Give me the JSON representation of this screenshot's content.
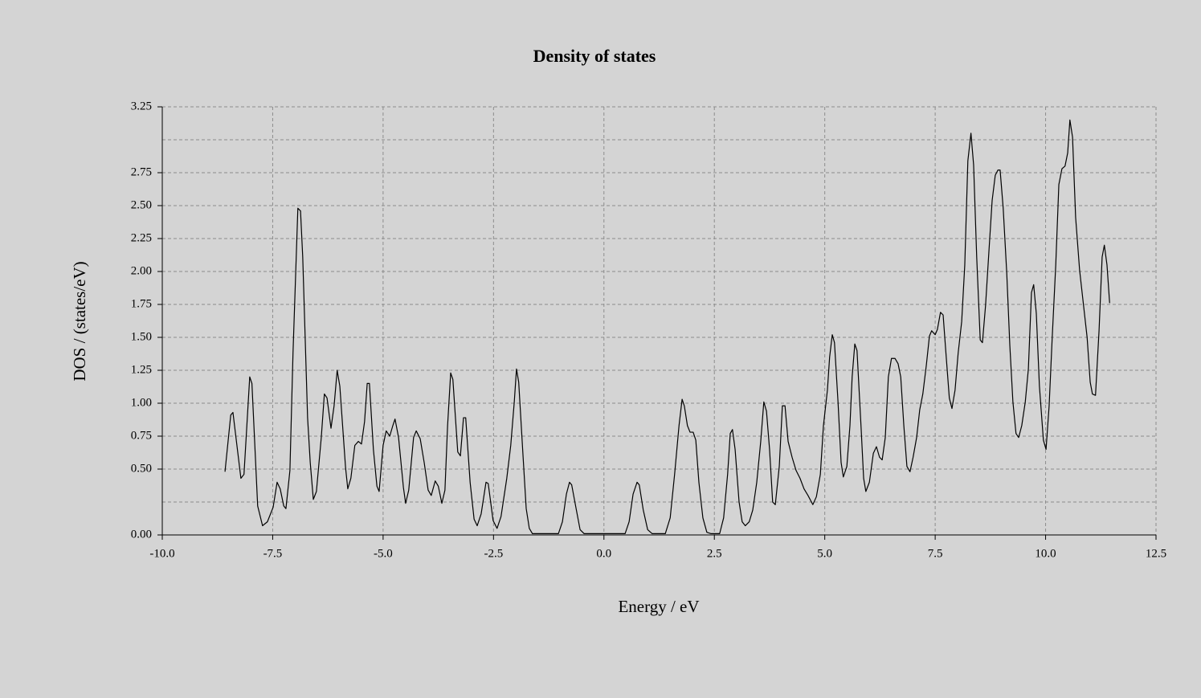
{
  "chart_data": {
    "type": "line",
    "title": "Density of states",
    "xlabel": "Energy / eV",
    "ylabel": "DOS / (states/eV)",
    "color": "#000000",
    "background": "#d4d4d4",
    "grid": true,
    "xlim": [
      -10,
      12.5
    ],
    "ylim": [
      0,
      3.25
    ],
    "xticks": [
      {
        "value": -10,
        "label": "-10.0"
      },
      -7.5,
      {
        "value": -5,
        "label": "-5.0"
      },
      -2.5,
      {
        "value": 0,
        "label": "0.0"
      },
      2.5,
      {
        "value": 5,
        "label": "5.0"
      },
      7.5,
      {
        "value": 10,
        "label": "10.0"
      },
      12.5
    ],
    "yticks": [
      {
        "value": 0,
        "label": "0.00"
      },
      {
        "value": 0.5,
        "label": "0.50"
      },
      {
        "value": 0.75,
        "label": "0.75"
      },
      {
        "value": 1,
        "label": "1.00"
      },
      {
        "value": 1.25,
        "label": "1.25"
      },
      {
        "value": 1.5,
        "label": "1.50"
      },
      {
        "value": 1.75,
        "label": "1.75"
      },
      {
        "value": 2,
        "label": "2.00"
      },
      {
        "value": 2.25,
        "label": "2.25"
      },
      {
        "value": 2.5,
        "label": "2.50"
      },
      {
        "value": 2.75,
        "label": "2.75"
      },
      {
        "value": 3.25,
        "label": "3.25"
      }
    ],
    "ygrid": [
      0.25,
      0.5,
      0.75,
      1,
      1.25,
      1.5,
      1.75,
      2,
      2.25,
      2.5,
      2.75,
      3,
      3.25
    ],
    "x": [
      -8.58,
      -8.45,
      -8.4,
      -8.22,
      -8.15,
      -8.02,
      -7.97,
      -7.84,
      -7.73,
      -7.62,
      -7.49,
      -7.4,
      -7.33,
      -7.25,
      -7.2,
      -7.11,
      -7.04,
      -6.93,
      -6.87,
      -6.82,
      -6.71,
      -6.65,
      -6.58,
      -6.51,
      -6.4,
      -6.33,
      -6.27,
      -6.18,
      -6.11,
      -6.04,
      -5.98,
      -5.85,
      -5.8,
      -5.73,
      -5.64,
      -5.56,
      -5.49,
      -5.42,
      -5.36,
      -5.31,
      -5.22,
      -5.14,
      -5.09,
      -5.0,
      -4.93,
      -4.85,
      -4.78,
      -4.73,
      -4.65,
      -4.54,
      -4.49,
      -4.42,
      -4.31,
      -4.25,
      -4.16,
      -4.07,
      -3.98,
      -3.91,
      -3.82,
      -3.75,
      -3.67,
      -3.6,
      -3.54,
      -3.47,
      -3.42,
      -3.31,
      -3.25,
      -3.18,
      -3.13,
      -3.03,
      -2.94,
      -2.87,
      -2.78,
      -2.67,
      -2.62,
      -2.51,
      -2.42,
      -2.33,
      -2.2,
      -2.11,
      -2.03,
      -1.98,
      -1.93,
      -1.83,
      -1.76,
      -1.69,
      -1.62,
      -1.03,
      -0.94,
      -0.85,
      -0.78,
      -0.73,
      -0.63,
      -0.54,
      -0.45,
      0.48,
      0.57,
      0.66,
      0.75,
      0.8,
      0.89,
      0.99,
      1.09,
      1.39,
      1.5,
      1.6,
      1.7,
      1.77,
      1.82,
      1.89,
      1.95,
      2.02,
      2.08,
      2.15,
      2.24,
      2.33,
      2.42,
      2.62,
      2.71,
      2.8,
      2.86,
      2.91,
      2.97,
      3.06,
      3.13,
      3.2,
      3.29,
      3.37,
      3.46,
      3.55,
      3.62,
      3.68,
      3.75,
      3.82,
      3.88,
      3.97,
      4.04,
      4.1,
      4.17,
      4.26,
      4.35,
      4.44,
      4.53,
      4.62,
      4.73,
      4.81,
      4.9,
      4.97,
      5.06,
      5.11,
      5.17,
      5.22,
      5.3,
      5.37,
      5.42,
      5.5,
      5.57,
      5.62,
      5.68,
      5.73,
      5.82,
      5.88,
      5.93,
      6.01,
      6.1,
      6.17,
      6.24,
      6.3,
      6.37,
      6.44,
      6.51,
      6.59,
      6.66,
      6.72,
      6.79,
      6.86,
      6.93,
      7.0,
      7.08,
      7.15,
      7.22,
      7.3,
      7.37,
      7.42,
      7.5,
      7.55,
      7.62,
      7.68,
      7.73,
      7.82,
      7.88,
      7.95,
      8.02,
      8.1,
      8.17,
      8.24,
      8.31,
      8.37,
      8.44,
      8.52,
      8.57,
      8.64,
      8.72,
      8.79,
      8.86,
      8.92,
      8.97,
      9.04,
      9.12,
      9.19,
      9.26,
      9.33,
      9.39,
      9.46,
      9.54,
      9.61,
      9.68,
      9.73,
      9.79,
      9.86,
      9.95,
      10.01,
      10.08,
      10.15,
      10.23,
      10.3,
      10.37,
      10.44,
      10.5,
      10.55,
      10.61,
      10.68,
      10.77,
      10.86,
      10.94,
      11.01,
      11.06,
      11.13,
      11.21,
      11.28,
      11.33,
      11.39,
      11.45
    ],
    "values": [
      0.48,
      0.91,
      0.93,
      0.43,
      0.46,
      1.2,
      1.15,
      0.22,
      0.07,
      0.1,
      0.21,
      0.4,
      0.35,
      0.22,
      0.2,
      0.49,
      1.38,
      2.48,
      2.46,
      2.11,
      0.89,
      0.55,
      0.27,
      0.33,
      0.74,
      1.07,
      1.04,
      0.81,
      0.98,
      1.25,
      1.13,
      0.51,
      0.35,
      0.43,
      0.68,
      0.71,
      0.69,
      0.86,
      1.15,
      1.15,
      0.65,
      0.37,
      0.33,
      0.68,
      0.79,
      0.75,
      0.83,
      0.88,
      0.74,
      0.36,
      0.24,
      0.34,
      0.74,
      0.79,
      0.73,
      0.55,
      0.34,
      0.3,
      0.41,
      0.37,
      0.24,
      0.34,
      0.83,
      1.23,
      1.18,
      0.63,
      0.6,
      0.89,
      0.89,
      0.4,
      0.12,
      0.07,
      0.16,
      0.4,
      0.39,
      0.11,
      0.05,
      0.14,
      0.43,
      0.68,
      1.01,
      1.26,
      1.16,
      0.59,
      0.2,
      0.05,
      0.01,
      0.01,
      0.1,
      0.31,
      0.4,
      0.38,
      0.2,
      0.04,
      0.01,
      0.01,
      0.1,
      0.31,
      0.4,
      0.38,
      0.19,
      0.04,
      0.01,
      0.01,
      0.13,
      0.46,
      0.83,
      1.03,
      0.98,
      0.83,
      0.78,
      0.78,
      0.72,
      0.4,
      0.13,
      0.02,
      0.01,
      0.01,
      0.13,
      0.46,
      0.77,
      0.8,
      0.65,
      0.25,
      0.1,
      0.07,
      0.1,
      0.19,
      0.4,
      0.71,
      1.01,
      0.94,
      0.65,
      0.25,
      0.23,
      0.52,
      0.98,
      0.98,
      0.71,
      0.59,
      0.49,
      0.43,
      0.35,
      0.3,
      0.23,
      0.29,
      0.46,
      0.83,
      1.1,
      1.35,
      1.52,
      1.46,
      1.01,
      0.55,
      0.44,
      0.52,
      0.83,
      1.2,
      1.45,
      1.4,
      0.83,
      0.43,
      0.33,
      0.4,
      0.62,
      0.67,
      0.59,
      0.57,
      0.74,
      1.2,
      1.34,
      1.34,
      1.3,
      1.2,
      0.83,
      0.52,
      0.48,
      0.59,
      0.74,
      0.95,
      1.07,
      1.29,
      1.51,
      1.55,
      1.52,
      1.56,
      1.69,
      1.67,
      1.44,
      1.04,
      0.96,
      1.1,
      1.38,
      1.62,
      2.05,
      2.84,
      3.05,
      2.81,
      2.11,
      1.48,
      1.46,
      1.74,
      2.17,
      2.54,
      2.73,
      2.77,
      2.77,
      2.48,
      1.99,
      1.44,
      1.01,
      0.77,
      0.74,
      0.83,
      1.01,
      1.26,
      1.84,
      1.9,
      1.68,
      1.13,
      0.72,
      0.65,
      0.98,
      1.5,
      2.05,
      2.66,
      2.78,
      2.8,
      2.9,
      3.15,
      3.02,
      2.41,
      2.01,
      1.74,
      1.5,
      1.16,
      1.07,
      1.06,
      1.55,
      2.11,
      2.2,
      2.05,
      1.76
    ]
  }
}
